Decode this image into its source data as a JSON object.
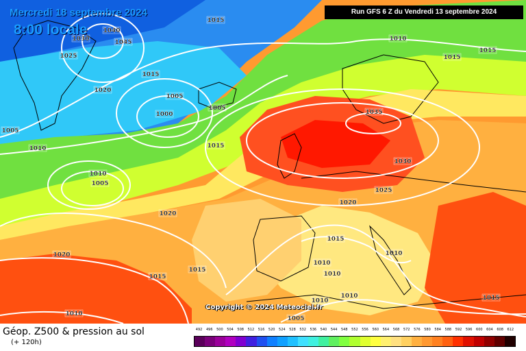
{
  "header": {
    "date_title": "Mercredi 18 septembre 2024",
    "time_title": "8:00 locale",
    "run_info": "Run GFS 6 Z du Vendredi 13 septembre 2024"
  },
  "footer": {
    "copyright": "Copyright © 2024 Meteociel.fr",
    "legend_title": "Géop. Z500 & pression au sol",
    "legend_subtitle": "(+ 120h)"
  },
  "scale": {
    "ticks": [
      "492",
      "496",
      "500",
      "504",
      "508",
      "512",
      "516",
      "520",
      "524",
      "528",
      "532",
      "536",
      "540",
      "544",
      "548",
      "552",
      "556",
      "560",
      "564",
      "568",
      "572",
      "576",
      "580",
      "584",
      "588",
      "592",
      "596",
      "600",
      "604",
      "608",
      "612"
    ],
    "colors": [
      "#5a005a",
      "#7a007a",
      "#9a009a",
      "#b000c0",
      "#8000d0",
      "#4020e0",
      "#2050f0",
      "#1080ff",
      "#10a0ff",
      "#20c0ff",
      "#40e0ff",
      "#40f0e0",
      "#40f0a0",
      "#60f060",
      "#80ff40",
      "#b0ff30",
      "#e0ff30",
      "#ffff40",
      "#fff070",
      "#ffe080",
      "#ffd060",
      "#ffb040",
      "#ff9830",
      "#ff8020",
      "#ff6010",
      "#ff3000",
      "#e01000",
      "#c00000",
      "#900000",
      "#600000",
      "#200000"
    ]
  },
  "isobar_labels": [
    {
      "text": "1040"
    },
    {
      "text": "1045"
    },
    {
      "text": "1030"
    },
    {
      "text": "1025"
    },
    {
      "text": "1020"
    },
    {
      "text": "1015"
    },
    {
      "text": "1005"
    },
    {
      "text": "1000"
    },
    {
      "text": "1005"
    },
    {
      "text": "1010"
    },
    {
      "text": "1010"
    },
    {
      "text": "1005"
    },
    {
      "text": "1015"
    },
    {
      "text": "1020"
    },
    {
      "text": "1020"
    },
    {
      "text": "1015"
    },
    {
      "text": "1015"
    },
    {
      "text": "1010"
    },
    {
      "text": "1015"
    },
    {
      "text": "1005"
    },
    {
      "text": "1010"
    },
    {
      "text": "1015"
    },
    {
      "text": "1035"
    },
    {
      "text": "1030"
    },
    {
      "text": "1025"
    },
    {
      "text": "1020"
    },
    {
      "text": "1015"
    },
    {
      "text": "1010"
    },
    {
      "text": "1010"
    },
    {
      "text": "1010"
    },
    {
      "text": "1010"
    },
    {
      "text": "1005"
    },
    {
      "text": "1015"
    },
    {
      "text": "1015"
    },
    {
      "text": "1010"
    }
  ]
}
